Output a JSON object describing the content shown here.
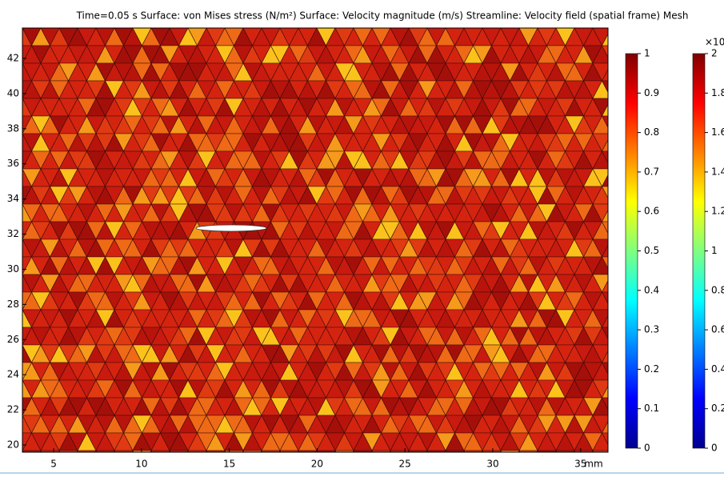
{
  "chart_data": {
    "type": "surface",
    "title": "Time=0.05 s   Surface: von Mises stress (N/m²)  Surface: Velocity magnitude (m/s)  Streamline: Velocity field (spatial frame) Mesh",
    "xlim": [
      3.22,
      36.56
    ],
    "ylim": [
      19.59,
      43.73
    ],
    "xticks": [
      5,
      10,
      15,
      20,
      25,
      30,
      35
    ],
    "yticks": [
      20,
      22,
      24,
      26,
      28,
      30,
      32,
      34,
      36,
      38,
      40,
      42
    ],
    "x_unit": "mm",
    "colorbars": [
      {
        "lim": [
          0,
          1
        ],
        "ticks": [
          0,
          0.1,
          0.2,
          0.3,
          0.4,
          0.5,
          0.6,
          0.7,
          0.8,
          0.9,
          1
        ]
      },
      {
        "lim": [
          0,
          2
        ],
        "ticks": [
          0,
          0.2,
          0.4,
          0.6,
          0.8,
          1,
          1.2,
          1.4,
          1.6,
          1.8,
          2
        ],
        "multiplier": "×10"
      }
    ]
  }
}
